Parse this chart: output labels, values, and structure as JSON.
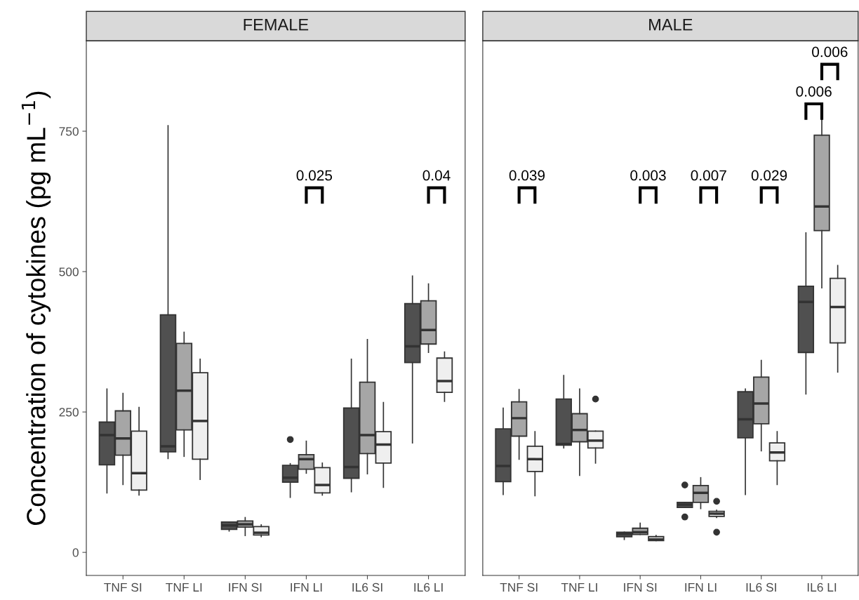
{
  "chart_data": [
    {
      "type": "box",
      "title": "FEMALE",
      "ylabel": "Concentration of cytokines (pg mL$^{−1}$)",
      "categories": [
        "TNF SI",
        "TNF LI",
        "IFN SI",
        "IFN LI",
        "IL6 SI",
        "IL6 LI"
      ],
      "ylim": [
        -41,
        911
      ],
      "yticks": [
        0,
        250,
        500,
        750
      ],
      "grid": false,
      "legend": false,
      "series": [
        {
          "color": "#505050",
          "boxes": [
            {
              "low": 106,
              "q1": 156,
              "median": 209,
              "q3": 232,
              "high": 291
            },
            {
              "low": 167,
              "q1": 179,
              "median": 189,
              "q3": 423,
              "high": 760
            },
            {
              "low": 38,
              "q1": 41,
              "median": 48,
              "q3": 54,
              "high": 54
            },
            {
              "low": 98,
              "q1": 125,
              "median": 133,
              "q3": 155,
              "high": 158,
              "outliers": [
                201
              ]
            },
            {
              "low": 108,
              "q1": 132,
              "median": 152,
              "q3": 257,
              "high": 344
            },
            {
              "low": 195,
              "q1": 338,
              "median": 367,
              "q3": 443,
              "high": 492
            }
          ]
        },
        {
          "color": "#a6a6a6",
          "boxes": [
            {
              "low": 121,
              "q1": 173,
              "median": 203,
              "q3": 252,
              "high": 283
            },
            {
              "low": 171,
              "q1": 218,
              "median": 288,
              "q3": 372,
              "high": 392
            },
            {
              "low": 30,
              "q1": 45,
              "median": 50,
              "q3": 56,
              "high": 62
            },
            {
              "low": 141,
              "q1": 148,
              "median": 166,
              "q3": 174,
              "high": 198
            },
            {
              "low": 140,
              "q1": 176,
              "median": 209,
              "q3": 303,
              "high": 379
            },
            {
              "low": 356,
              "q1": 371,
              "median": 396,
              "q3": 448,
              "high": 478
            }
          ]
        },
        {
          "color": "#efefef",
          "boxes": [
            {
              "low": 102,
              "q1": 111,
              "median": 141,
              "q3": 216,
              "high": 258
            },
            {
              "low": 130,
              "q1": 166,
              "median": 234,
              "q3": 320,
              "high": 344
            },
            {
              "low": 28,
              "q1": 31,
              "median": 35,
              "q3": 46,
              "high": 49
            },
            {
              "low": 102,
              "q1": 106,
              "median": 120,
              "q3": 151,
              "high": 159
            },
            {
              "low": 116,
              "q1": 159,
              "median": 192,
              "q3": 215,
              "high": 267
            },
            {
              "low": 269,
              "q1": 285,
              "median": 305,
              "q3": 346,
              "high": 357
            }
          ]
        }
      ],
      "annotations": [
        "0.025",
        "0.04"
      ]
    },
    {
      "type": "box",
      "title": "MALE",
      "tick_labels": "x",
      "categories": [
        "TNF SI",
        "TNF LI",
        "IFN SI",
        "IFN LI",
        "IL6 SI",
        "IL6 LI"
      ],
      "ylim": [
        -41,
        911
      ],
      "yticks": [
        0,
        250,
        500,
        750
      ],
      "grid": false,
      "legend": false,
      "series": [
        {
          "color": "#505050",
          "boxes": [
            {
              "low": 103,
              "q1": 126,
              "median": 154,
              "q3": 220,
              "high": 257
            },
            {
              "low": 186,
              "q1": 191,
              "median": 193,
              "q3": 273,
              "high": 315
            },
            {
              "low": 23,
              "q1": 28,
              "median": 33,
              "q3": 36,
              "high": 36
            },
            {
              "low": 80,
              "q1": 80,
              "median": 85,
              "q3": 89,
              "high": 89,
              "outliers": [
                120,
                63
              ]
            },
            {
              "low": 103,
              "q1": 204,
              "median": 237,
              "q3": 286,
              "high": 291
            },
            {
              "low": 282,
              "q1": 356,
              "median": 446,
              "q3": 474,
              "high": 569
            }
          ]
        },
        {
          "color": "#a6a6a6",
          "boxes": [
            {
              "low": 166,
              "q1": 207,
              "median": 239,
              "q3": 268,
              "high": 290
            },
            {
              "low": 137,
              "q1": 197,
              "median": 218,
              "q3": 247,
              "high": 291
            },
            {
              "low": 32,
              "q1": 32,
              "median": 36,
              "q3": 43,
              "high": 52
            },
            {
              "low": 78,
              "q1": 89,
              "median": 106,
              "q3": 119,
              "high": 133
            },
            {
              "low": 181,
              "q1": 229,
              "median": 265,
              "q3": 312,
              "high": 342
            },
            {
              "low": 471,
              "q1": 573,
              "median": 616,
              "q3": 743,
              "high": 773
            }
          ]
        },
        {
          "color": "#efefef",
          "boxes": [
            {
              "low": 101,
              "q1": 144,
              "median": 166,
              "q3": 189,
              "high": 215
            },
            {
              "low": 159,
              "q1": 186,
              "median": 199,
              "q3": 216,
              "high": 216,
              "outliers": [
                273
              ]
            },
            {
              "low": 21,
              "q1": 21,
              "median": 23,
              "q3": 28,
              "high": 30
            },
            {
              "low": 62,
              "q1": 64,
              "median": 69,
              "q3": 73,
              "high": 75,
              "outliers": [
                91,
                36
              ]
            },
            {
              "low": 121,
              "q1": 163,
              "median": 178,
              "q3": 195,
              "high": 215
            },
            {
              "low": 321,
              "q1": 373,
              "median": 437,
              "q3": 488,
              "high": 511
            }
          ]
        }
      ],
      "annotations": [
        "0.039",
        "0.003",
        "0.007",
        "0.029",
        "0.006",
        "0.006"
      ]
    }
  ]
}
